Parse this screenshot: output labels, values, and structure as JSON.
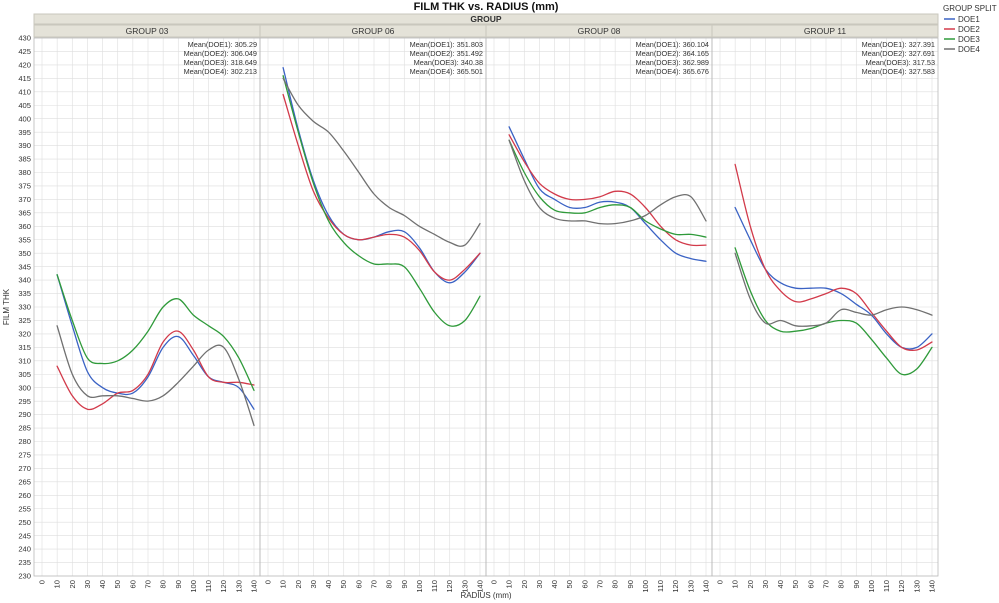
{
  "chart_data": {
    "type": "line",
    "title": "FILM THK vs. RADIUS (mm)",
    "panel_group_label": "GROUP",
    "xlabel": "RADIUS (mm)",
    "ylabel": "FILM THK",
    "xlim": [
      0,
      140
    ],
    "ylim": [
      230,
      430
    ],
    "x_ticks": [
      0,
      10,
      20,
      30,
      40,
      50,
      60,
      70,
      80,
      90,
      100,
      110,
      120,
      130,
      140
    ],
    "y_ticks": [
      230,
      235,
      240,
      245,
      250,
      255,
      260,
      265,
      270,
      275,
      280,
      285,
      290,
      295,
      300,
      305,
      310,
      315,
      320,
      325,
      330,
      335,
      340,
      345,
      350,
      355,
      360,
      365,
      370,
      375,
      380,
      385,
      390,
      395,
      400,
      405,
      410,
      415,
      420,
      425,
      430
    ],
    "grid": true,
    "legend": {
      "title": "GROUP SPLIT",
      "placement": "right",
      "items": [
        {
          "name": "DOE1",
          "color": "#3a62c4"
        },
        {
          "name": "DOE2",
          "color": "#d23a4a"
        },
        {
          "name": "DOE3",
          "color": "#2f9a3a"
        },
        {
          "name": "DOE4",
          "color": "#707070"
        }
      ]
    },
    "panels": [
      {
        "name": "GROUP 03",
        "means": [
          "Mean(DOE1): 305.29",
          "Mean(DOE2): 306.049",
          "Mean(DOE3): 318.649",
          "Mean(DOE4): 302.213"
        ],
        "series": [
          {
            "name": "DOE1",
            "x": [
              10,
              20,
              30,
              40,
              50,
              60,
              70,
              80,
              90,
              100,
              110,
              120,
              130,
              140
            ],
            "y": [
              342,
              323,
              306,
              300,
              298,
              298,
              304,
              315,
              319,
              312,
              304,
              302,
              300,
              292
            ]
          },
          {
            "name": "DOE2",
            "x": [
              10,
              20,
              30,
              40,
              50,
              60,
              70,
              80,
              90,
              100,
              110,
              120,
              130,
              140
            ],
            "y": [
              308,
              297,
              292,
              294,
              298,
              299,
              305,
              317,
              321,
              314,
              304,
              302,
              302,
              301
            ]
          },
          {
            "name": "DOE3",
            "x": [
              10,
              20,
              30,
              40,
              50,
              60,
              70,
              80,
              90,
              100,
              110,
              120,
              130,
              140
            ],
            "y": [
              342,
              325,
              311,
              309,
              310,
              314,
              321,
              330,
              333,
              327,
              323,
              319,
              311,
              299
            ]
          },
          {
            "name": "DOE4",
            "x": [
              10,
              20,
              30,
              40,
              50,
              60,
              70,
              80,
              90,
              100,
              110,
              120,
              130,
              140
            ],
            "y": [
              323,
              305,
              297,
              297,
              297,
              296,
              295,
              297,
              302,
              308,
              314,
              315,
              303,
              286
            ]
          }
        ]
      },
      {
        "name": "GROUP 06",
        "means": [
          "Mean(DOE1): 351.803",
          "Mean(DOE2): 351.492",
          "Mean(DOE3): 340.38",
          "Mean(DOE4): 365.501"
        ],
        "series": [
          {
            "name": "DOE1",
            "x": [
              10,
              20,
              30,
              40,
              50,
              60,
              70,
              80,
              90,
              100,
              110,
              120,
              130,
              140
            ],
            "y": [
              419,
              396,
              377,
              364,
              357,
              355,
              356,
              358,
              358,
              352,
              343,
              339,
              343,
              350
            ]
          },
          {
            "name": "DOE2",
            "x": [
              10,
              20,
              30,
              40,
              50,
              60,
              70,
              80,
              90,
              100,
              110,
              120,
              130,
              140
            ],
            "y": [
              409,
              390,
              373,
              363,
              357,
              355,
              356,
              357,
              356,
              351,
              343,
              340,
              344,
              350
            ]
          },
          {
            "name": "DOE3",
            "x": [
              10,
              20,
              30,
              40,
              50,
              60,
              70,
              80,
              90,
              100,
              110,
              120,
              130,
              140
            ],
            "y": [
              416,
              395,
              376,
              362,
              354,
              349,
              346,
              346,
              345,
              337,
              328,
              323,
              325,
              334
            ]
          },
          {
            "name": "DOE4",
            "x": [
              10,
              20,
              30,
              40,
              50,
              60,
              70,
              80,
              90,
              100,
              110,
              120,
              130,
              140
            ],
            "y": [
              415,
              405,
              399,
              395,
              388,
              380,
              372,
              367,
              364,
              360,
              357,
              354,
              353,
              361
            ]
          }
        ]
      },
      {
        "name": "GROUP 08",
        "means": [
          "Mean(DOE1): 360.104",
          "Mean(DOE2): 364.165",
          "Mean(DOE3): 362.989",
          "Mean(DOE4): 365.676"
        ],
        "series": [
          {
            "name": "DOE1",
            "x": [
              10,
              20,
              30,
              40,
              50,
              60,
              70,
              80,
              90,
              100,
              110,
              120,
              130,
              140
            ],
            "y": [
              397,
              385,
              374,
              370,
              367,
              367,
              369,
              369,
              367,
              361,
              355,
              350,
              348,
              347
            ]
          },
          {
            "name": "DOE2",
            "x": [
              10,
              20,
              30,
              40,
              50,
              60,
              70,
              80,
              90,
              100,
              110,
              120,
              130,
              140
            ],
            "y": [
              394,
              384,
              376,
              372,
              370,
              370,
              371,
              373,
              372,
              367,
              360,
              355,
              353,
              353
            ]
          },
          {
            "name": "DOE3",
            "x": [
              10,
              20,
              30,
              40,
              50,
              60,
              70,
              80,
              90,
              100,
              110,
              120,
              130,
              140
            ],
            "y": [
              392,
              380,
              371,
              366,
              365,
              365,
              367,
              368,
              367,
              362,
              359,
              357,
              357,
              356
            ]
          },
          {
            "name": "DOE4",
            "x": [
              10,
              20,
              30,
              40,
              50,
              60,
              70,
              80,
              90,
              100,
              110,
              120,
              130,
              140
            ],
            "y": [
              392,
              377,
              367,
              363,
              362,
              362,
              361,
              361,
              362,
              364,
              368,
              371,
              371,
              362
            ]
          }
        ]
      },
      {
        "name": "GROUP 11",
        "means": [
          "Mean(DOE1): 327.391",
          "Mean(DOE2): 327.691",
          "Mean(DOE3): 317.53",
          "Mean(DOE4): 327.583"
        ],
        "series": [
          {
            "name": "DOE1",
            "x": [
              10,
              20,
              30,
              40,
              50,
              60,
              70,
              80,
              90,
              100,
              110,
              120,
              130,
              140
            ],
            "y": [
              367,
              355,
              344,
              339,
              337,
              337,
              337,
              335,
              331,
              327,
              320,
              315,
              315,
              320
            ]
          },
          {
            "name": "DOE2",
            "x": [
              10,
              20,
              30,
              40,
              50,
              60,
              70,
              80,
              90,
              100,
              110,
              120,
              130,
              140
            ],
            "y": [
              383,
              360,
              344,
              336,
              332,
              333,
              335,
              337,
              335,
              328,
              321,
              315,
              314,
              317
            ]
          },
          {
            "name": "DOE3",
            "x": [
              10,
              20,
              30,
              40,
              50,
              60,
              70,
              80,
              90,
              100,
              110,
              120,
              130,
              140
            ],
            "y": [
              352,
              336,
              325,
              321,
              321,
              322,
              324,
              325,
              324,
              318,
              311,
              305,
              307,
              315
            ]
          },
          {
            "name": "DOE4",
            "x": [
              10,
              20,
              30,
              40,
              50,
              60,
              70,
              80,
              90,
              100,
              110,
              120,
              130,
              140
            ],
            "y": [
              350,
              333,
              324,
              325,
              323,
              323,
              324,
              329,
              328,
              327,
              329,
              330,
              329,
              327
            ]
          }
        ]
      }
    ]
  }
}
